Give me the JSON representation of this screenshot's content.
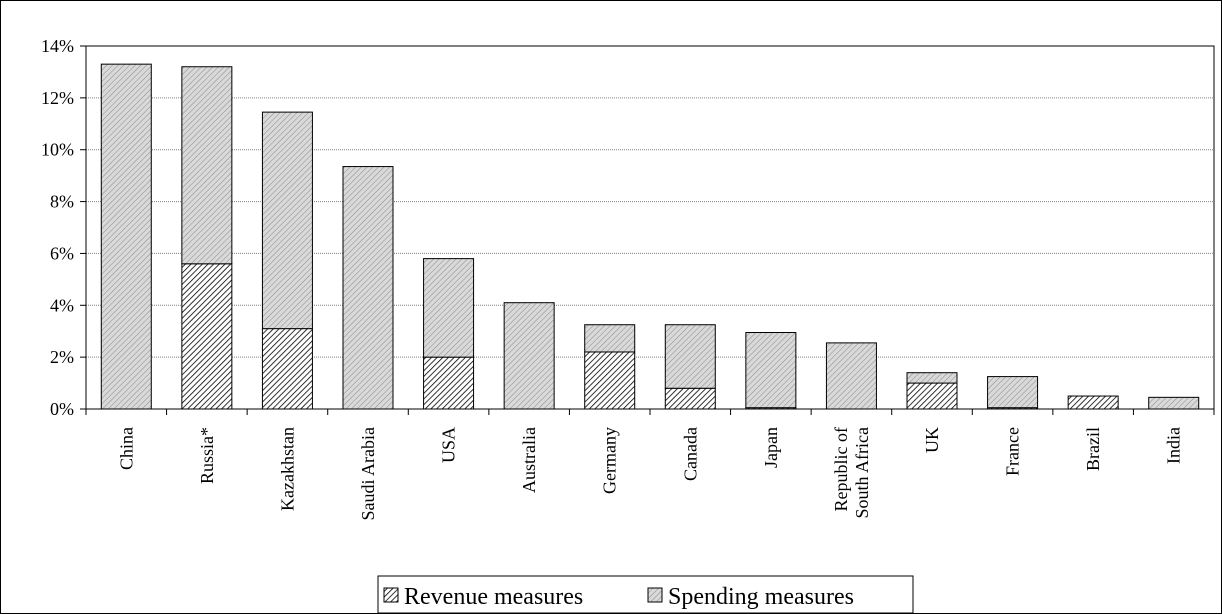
{
  "chart_data": {
    "type": "bar",
    "stacked": true,
    "categories": [
      "China",
      "Russia*",
      "Kazakhstan",
      "Saudi Arabia",
      "USA",
      "Australia",
      "Germany",
      "Canada",
      "Japan",
      "Republic of South Africa",
      "UK",
      "France",
      "Brazil",
      "India"
    ],
    "category_lines": [
      [
        "China"
      ],
      [
        "Russia*"
      ],
      [
        "Kazakhstan"
      ],
      [
        "Saudi Arabia"
      ],
      [
        "USA"
      ],
      [
        "Australia"
      ],
      [
        "Germany"
      ],
      [
        "Canada"
      ],
      [
        "Japan"
      ],
      [
        "Republic of",
        "South Africa"
      ],
      [
        "UK"
      ],
      [
        "France"
      ],
      [
        "Brazil"
      ],
      [
        "India"
      ]
    ],
    "series": [
      {
        "name": "Revenue measures",
        "pattern": "dense-diagonal-hatch",
        "values": [
          0,
          5.6,
          3.1,
          0,
          2.0,
          0,
          2.2,
          0.8,
          0.05,
          0,
          1.0,
          0.05,
          0.5,
          0
        ]
      },
      {
        "name": "Spending measures",
        "pattern": "light-diagonal-hatch",
        "values": [
          13.3,
          7.6,
          8.35,
          9.35,
          3.8,
          4.1,
          1.05,
          2.45,
          2.9,
          2.55,
          0.4,
          1.2,
          0,
          0.45
        ]
      }
    ],
    "y_ticks": [
      "0%",
      "2%",
      "4%",
      "6%",
      "8%",
      "10%",
      "12%",
      "14%"
    ],
    "ylim": [
      0,
      14
    ],
    "y_unit": "%",
    "grid": true,
    "legend_position": "bottom-center",
    "colors": {
      "background": "#ffffff",
      "grid": "#808080",
      "bar_outline": "#000000",
      "bar_fill": "#d9d9d9"
    }
  }
}
